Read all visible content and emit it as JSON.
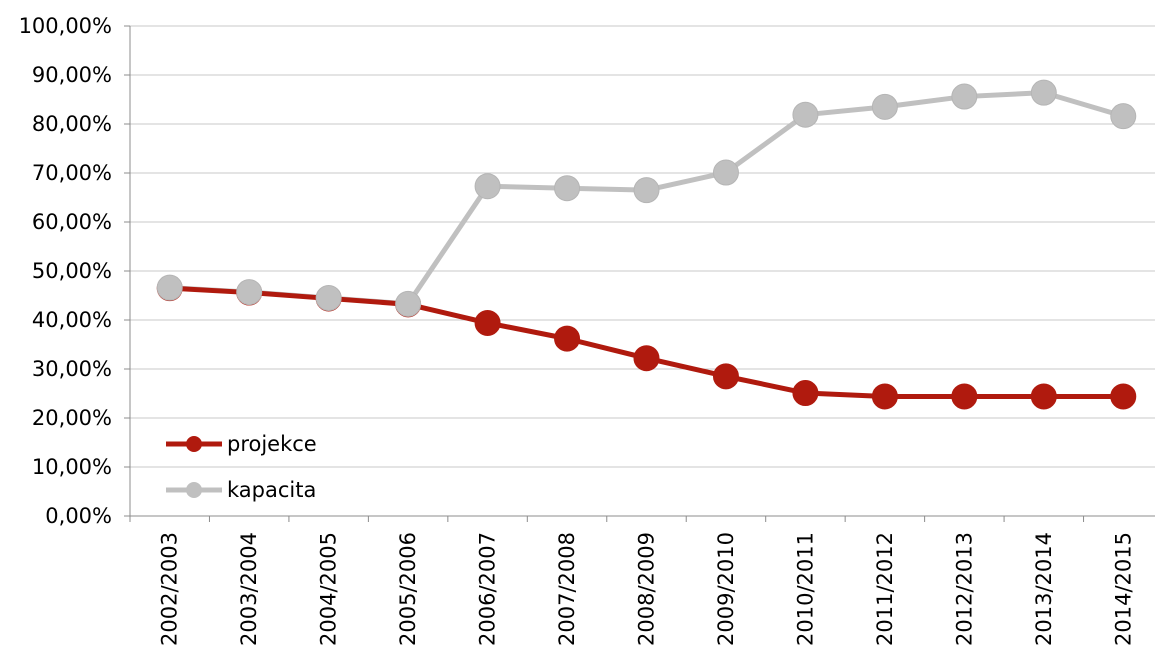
{
  "chart_data": {
    "type": "line",
    "title": "",
    "xlabel": "",
    "ylabel": "",
    "categories": [
      "2002/2003",
      "2003/2004",
      "2004/2005",
      "2005/2006",
      "2006/2007",
      "2007/2008",
      "2008/2009",
      "2009/2010",
      "2010/2011",
      "2011/2012",
      "2012/2013",
      "2013/2014",
      "2014/2015"
    ],
    "ylim": [
      0,
      100
    ],
    "yticks": [
      "0,00%",
      "10,00%",
      "20,00%",
      "30,00%",
      "40,00%",
      "50,00%",
      "60,00%",
      "70,00%",
      "80,00%",
      "90,00%",
      "100,00%"
    ],
    "grid": true,
    "legend_position": "bottom-left",
    "series": [
      {
        "name": "projekce",
        "color": "#b01a0e",
        "values": [
          46.5,
          45.6,
          44.4,
          43.2,
          39.4,
          36.2,
          32.2,
          28.5,
          25.1,
          24.4,
          24.4,
          24.4,
          24.4
        ]
      },
      {
        "name": "kapacita",
        "color": "#c0c0c0",
        "values": [
          46.6,
          45.7,
          44.5,
          43.3,
          67.3,
          66.9,
          66.5,
          70.1,
          81.9,
          83.5,
          85.6,
          86.4,
          81.6
        ]
      }
    ]
  }
}
